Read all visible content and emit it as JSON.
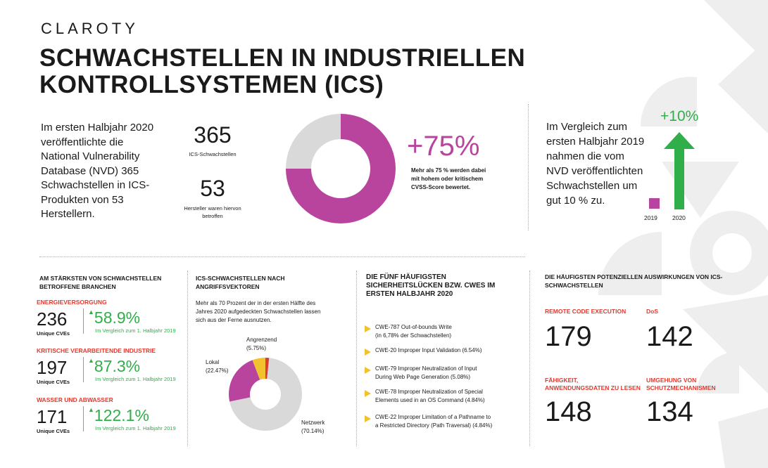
{
  "brand": "CLAROTY",
  "headline": {
    "line1": "SCHWACHSTELLEN IN INDUSTRIELLEN",
    "line2": "KONTROLLSYSTEMEN (ICS)"
  },
  "intro_text": "Im ersten Halbjahr 2020 veröffentlichte die National Vulnerability Database (NVD) 365 Schwachstellen in ICS-Produkten von 53 Herstellern.",
  "stats": {
    "vuln_count": "365",
    "vuln_label": "ICS-Schwachstellen",
    "vendor_count": "53",
    "vendor_label": "Hersteller waren hiervon betroffen"
  },
  "severity": {
    "pct": "+75%",
    "note": "Mehr als 75 % werden dabei mit hohem oder kritischem CVSS-Score bewertet.",
    "high_fraction": 0.75,
    "colors": {
      "high": "#b8449d",
      "other": "#d9d9d9"
    }
  },
  "comparison": {
    "text": "Im Vergleich zum ersten Halbjahr 2019 nahmen die vom NVD veröffentlichten Schwachstellen um gut 10 % zu.",
    "pct": "+10%",
    "year_a": "2019",
    "year_b": "2020",
    "colors": {
      "year_a": "#b8449d",
      "year_b": "#2fae4a"
    }
  },
  "industries": {
    "heading": "AM STÄRKSTEN VON SCHWACHSTELLEN BETROFFENE BRANCHEN",
    "items": [
      {
        "name": "ENERGIEVERSORGUNG",
        "count": "236",
        "unit": "Unique CVEs",
        "pct": "58.9%",
        "note": "Im Vergleich zum 1. Halbjahr 2019"
      },
      {
        "name": "KRITISCHE VERARBEITENDE INDUSTRIE",
        "count": "197",
        "unit": "Unique CVEs",
        "pct": "87.3%",
        "note": "Im Vergleich zum 1. Halbjahr 2019"
      },
      {
        "name": "WASSER UND ABWASSER",
        "count": "171",
        "unit": "Unique CVEs",
        "pct": "122.1%",
        "note": "Im Vergleich zum 1. Halbjahr 2019"
      }
    ]
  },
  "vectors": {
    "heading": "ICS-SCHWACHSTELLEN NACH ANGRIFFSVEKTOREN",
    "text": "Mehr als 70 Prozent der in der ersten Hälfte des Jahres 2020 aufgedeckten Schwachstellen lassen sich aus der Ferne ausnutzen.",
    "slices": [
      {
        "name": "Netzwerk",
        "pct_label": "(70.14%)",
        "value": 70.14,
        "color": "#d9d9d9"
      },
      {
        "name": "Lokal",
        "pct_label": "(22.47%)",
        "value": 22.47,
        "color": "#b8449d"
      },
      {
        "name": "Angrenzend",
        "pct_label": "(5.75%)",
        "value": 5.75,
        "color": "#f2c12e"
      },
      {
        "name": "",
        "pct_label": "",
        "value": 1.64,
        "color": "#e03a2f"
      }
    ]
  },
  "cwes": {
    "heading": "DIE FÜNF HÄUFIGSTEN SICHERHEITSLÜCKEN BZW. CWES IM ERSTEN HALBJAHR 2020",
    "items": [
      {
        "line1": "CWE-787 Out-of-bounds Write",
        "line2": "(in 6,78% der Schwachstellen)"
      },
      {
        "line1": "CWE-20 Improper Input Validation (6.54%)",
        "line2": ""
      },
      {
        "line1": "CWE-79 Improper Neutralization of Input",
        "line2": "During Web Page Generation (5.08%)"
      },
      {
        "line1": "CWE-78 Improper Neutralization of Special",
        "line2": "Elements used in an OS Command (4.84%)"
      },
      {
        "line1": "CWE-22 Improper Limitation of a Pathname to",
        "line2": "a Restricted Directory (Path Traversal) (4.84%)"
      }
    ]
  },
  "impacts": {
    "heading": "DIE HÄUFIGSTEN POTENZIELLEN AUSWIRKUNGEN VON ICS-SCHWACHSTELLEN",
    "items": [
      {
        "label": "REMOTE CODE EXECUTION",
        "value": "179"
      },
      {
        "label": "DoS",
        "value": "142"
      },
      {
        "label": "FÄHIGKEIT, ANWENDUNGSDATEN ZU LESEN",
        "value": "148"
      },
      {
        "label": "UMGEHUNG VON SCHUTZMECHANISMEN",
        "value": "134"
      }
    ]
  }
}
